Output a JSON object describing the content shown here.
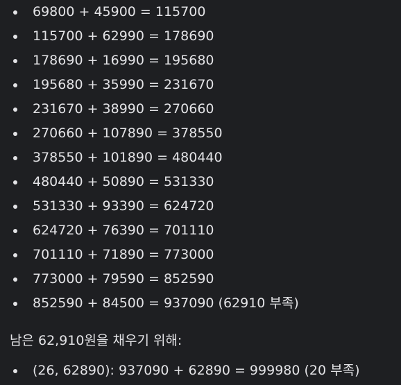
{
  "calculations": [
    "69800 + 45900 = 115700",
    "115700 + 62990 = 178690",
    "178690 + 16990 = 195680",
    "195680 + 35990 = 231670",
    "231670 + 38990 = 270660",
    "270660 + 107890 = 378550",
    "378550 + 101890 = 480440",
    "480440 + 50890 = 531330",
    "531330 + 93390 = 624720",
    "624720 + 76390 = 701110",
    "701110 + 71890 = 773000",
    "773000 + 79590 = 852590",
    "852590 + 84500 = 937090 (62910 부족)"
  ],
  "paragraph": "남은 62,910원을 채우기 위해:",
  "final_items": [
    "(26, 62890): 937090 + 62890 = 999980 (20 부족)"
  ],
  "colors": {
    "background": "#1e1f22",
    "text": "#e3e3e6"
  }
}
